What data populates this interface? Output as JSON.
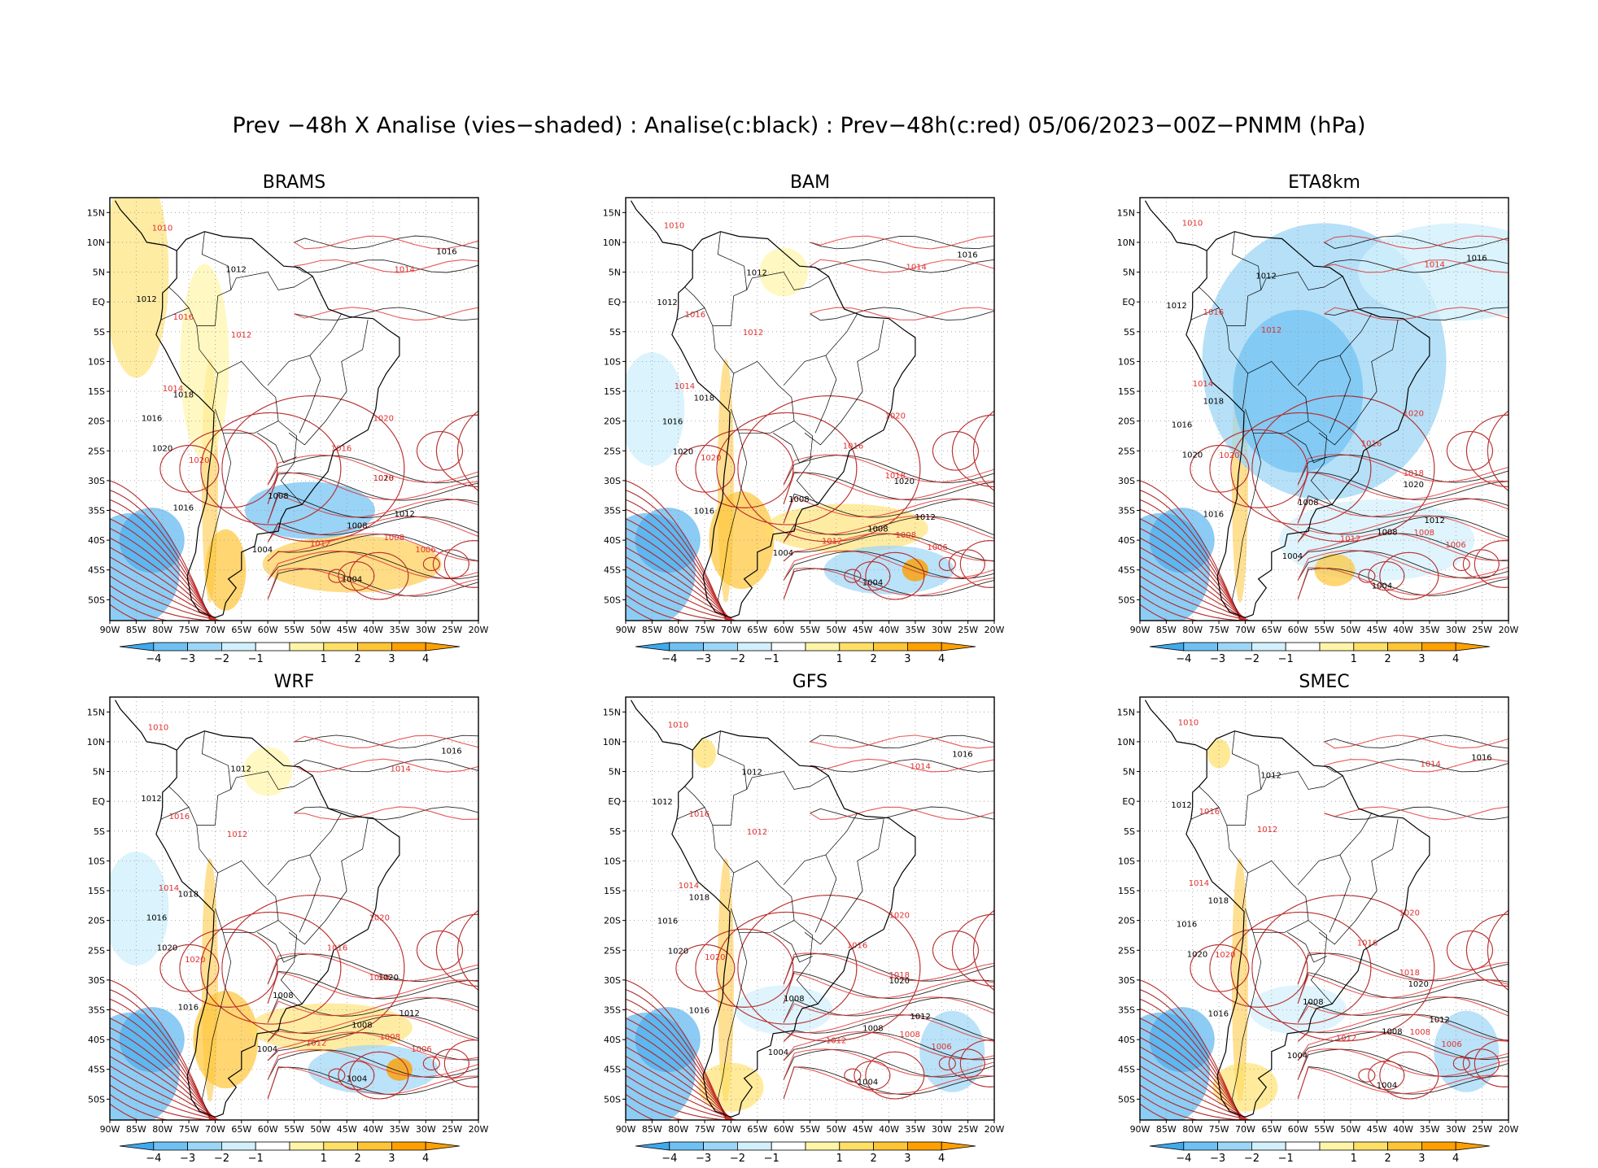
{
  "title": "Prev −48h X Analise (vies−shaded) : Analise(c:black) : Prev−48h(c:red) 05/06/2023−00Z−PNMM (hPa)",
  "axes": {
    "lon_labels": [
      "90W",
      "85W",
      "80W",
      "75W",
      "70W",
      "65W",
      "60W",
      "55W",
      "50W",
      "45W",
      "40W",
      "35W",
      "30W",
      "25W",
      "20W"
    ],
    "lat_labels": [
      "15N",
      "10N",
      "5N",
      "EQ",
      "5S",
      "10S",
      "15S",
      "20S",
      "25S",
      "30S",
      "35S",
      "40S",
      "45S",
      "50S"
    ]
  },
  "colorbar": {
    "labels": [
      "−4",
      "−3",
      "−2",
      "−1",
      "1",
      "2",
      "3",
      "4"
    ],
    "colors": [
      "#3fa9ec",
      "#6ec1f2",
      "#9cd6f6",
      "#d1f0fb",
      "#ffffff",
      "#fff5a8",
      "#ffe066",
      "#ffc536",
      "#ffa000"
    ]
  },
  "colors": {
    "analysis_contour": "#000000",
    "forecast_contour": "#e03030",
    "grid": "#999999"
  },
  "panels": [
    {
      "id": "brams",
      "title": "BRAMS",
      "bias": "warm"
    },
    {
      "id": "bam",
      "title": "BAM",
      "bias": "mixed"
    },
    {
      "id": "eta8km",
      "title": "ETA8km",
      "bias": "cold"
    },
    {
      "id": "wrf",
      "title": "WRF",
      "bias": "mixed"
    },
    {
      "id": "gfs",
      "title": "GFS",
      "bias": "neutral"
    },
    {
      "id": "smec",
      "title": "SMEC",
      "bias": "neutral"
    }
  ],
  "contour_labels": {
    "analysis": [
      "1016",
      "1008",
      "1012",
      "1020",
      "1012",
      "1016",
      "1020",
      "1004",
      "1008",
      "1004",
      "1016",
      "1018",
      "1012"
    ],
    "forecast": [
      "1014",
      "1010",
      "1012",
      "1016",
      "1020",
      "1018",
      "1014",
      "1008",
      "1016",
      "1006",
      "1012",
      "1020"
    ]
  }
}
